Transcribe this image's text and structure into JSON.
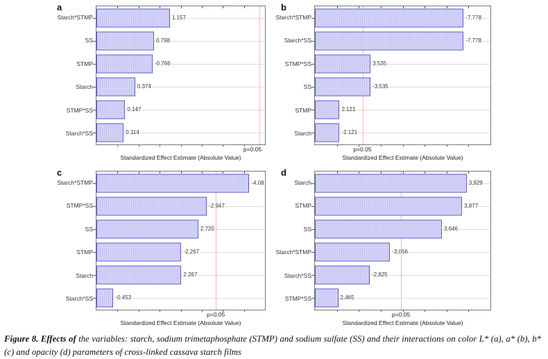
{
  "caption": {
    "bold": "Figure 8. Effects of",
    "rest": " the variables: starch, sodium trimetaphosphate (STMP) and sodium sulfate (SS) and their interactions on color L* (a), a* (b), b* (c) and opacity (d) parameters of cross-linked cassava starch films"
  },
  "colors": {
    "bar_fill": "#d3d3f8",
    "bar_dot": "#a7a7e8",
    "bar_border": "#5b5bc4",
    "p_line": "#f26d6d",
    "grid": "#dcdcdc"
  },
  "chart_data": [
    {
      "type": "bar",
      "orientation": "horizontal",
      "panel": "a",
      "categories": [
        "Starch*STMP",
        "SS",
        "STMP",
        "Starch",
        "STMP*SS",
        "Starch*SS"
      ],
      "values": [
        1.157,
        0.798,
        -0.766,
        0.374,
        0.147,
        0.114
      ],
      "value_labels": [
        "1.157",
        "0.798",
        "-0.766",
        "0.374",
        "0.147",
        "0.114"
      ],
      "xlabel": "Standardized Effect Estimate (Absolute Value)",
      "xlim": [
        -0.5,
        3.3
      ],
      "grid": true,
      "p_line": {
        "value": 3.18,
        "label": "p=0.05"
      }
    },
    {
      "type": "bar",
      "orientation": "horizontal",
      "panel": "b",
      "categories": [
        "Starch*STMP",
        "Starch*SS",
        "STMP*SS",
        "SS",
        "STMP",
        "Starch"
      ],
      "values": [
        -7.778,
        -7.778,
        3.535,
        -3.535,
        2.121,
        -2.121
      ],
      "value_labels": [
        "-7.778",
        "-7.778",
        "3.535",
        "-3.535",
        "2.121",
        "-2.121"
      ],
      "xlabel": "Standardized Effect Estimate (Absolute Value)",
      "xlim": [
        1.0,
        9.0
      ],
      "grid": true,
      "p_line": {
        "value": 3.18,
        "label": "p=0.05"
      }
    },
    {
      "type": "bar",
      "orientation": "horizontal",
      "panel": "c",
      "categories": [
        "Starch*STMP",
        "STMP*SS",
        "SS",
        "STMP",
        "Starch",
        "Starch*SS"
      ],
      "values": [
        -4.08,
        -2.947,
        2.72,
        -2.267,
        2.267,
        -0.453
      ],
      "value_labels": [
        "-4.08",
        "-2.947",
        "2.720",
        "-2.267",
        "2.267",
        "-0.453"
      ],
      "xlabel": "Standardized Effect Estimate (Absolute Value)",
      "xlim": [
        0.0,
        4.5
      ],
      "grid": true,
      "p_line": {
        "value": 3.18,
        "label": "p=0.05"
      }
    },
    {
      "type": "bar",
      "orientation": "horizontal",
      "panel": "d",
      "categories": [
        "Starch",
        "STMP",
        "SS",
        "Starch*STMP",
        "Starch*SS",
        "STMP*SS"
      ],
      "values": [
        3.929,
        3.877,
        3.646,
        -3.056,
        -2.825,
        2.465
      ],
      "value_labels": [
        "3,929",
        "3,877",
        "3,646",
        "-3,056",
        "-2,825",
        "2,465"
      ],
      "xlabel": "Standardized Effect Estimate (Absolute Value)",
      "xlim": [
        2.2,
        4.2
      ],
      "grid": true,
      "p_line": {
        "value": 3.18,
        "label": "p=0.05"
      }
    }
  ]
}
